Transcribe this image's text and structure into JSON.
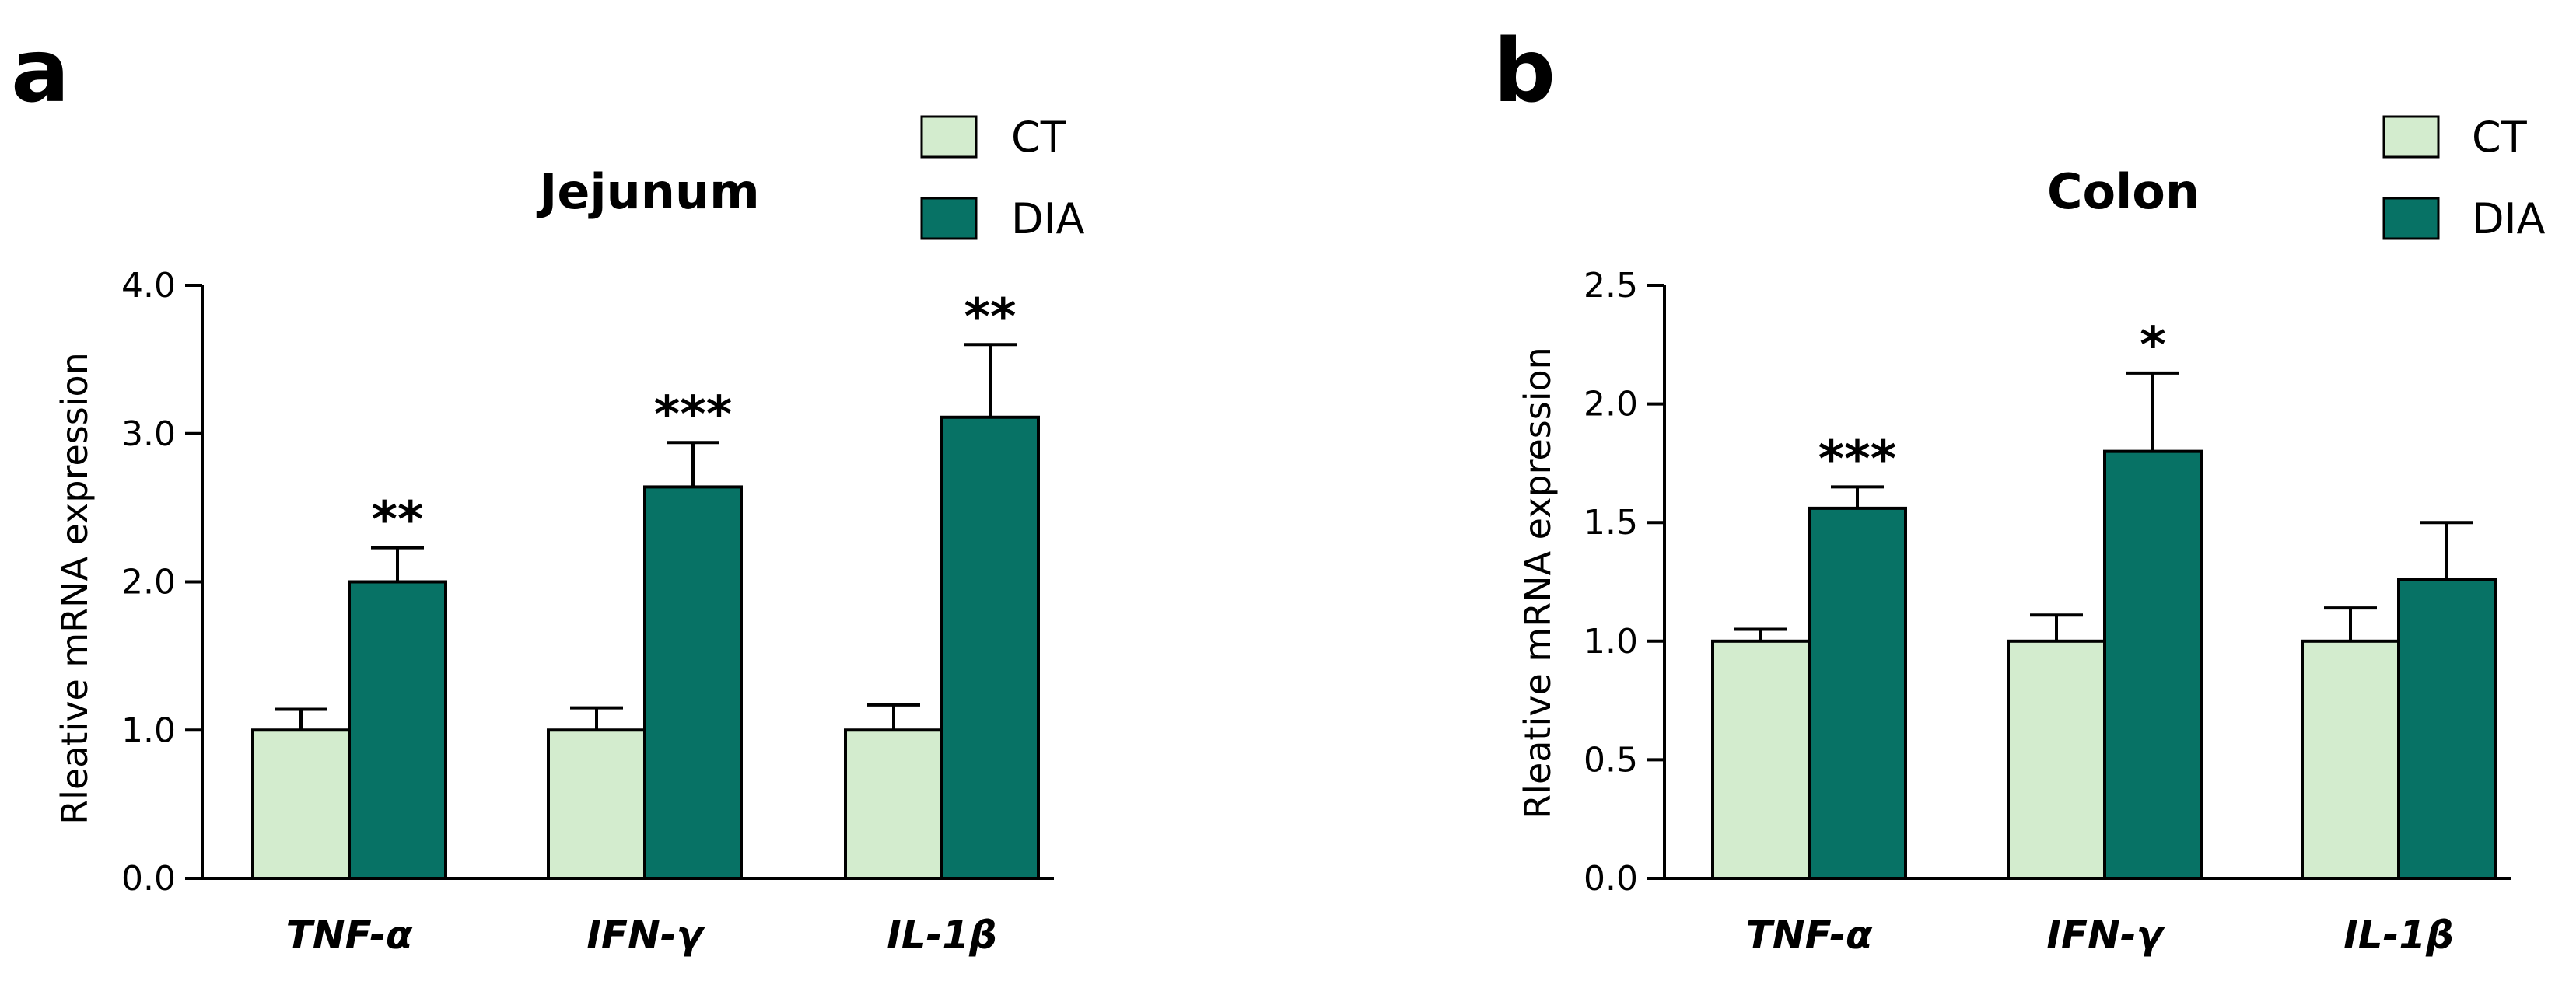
{
  "colors": {
    "CT": "#d3ecce",
    "DIA": "#077265",
    "stroke": "#000000"
  },
  "chart_data": [
    {
      "type": "bar",
      "panel": "a",
      "title": "Jejunum",
      "ylabel": "Rleative mRNA expression",
      "xlabel": "",
      "ylim": [
        0,
        4.0
      ],
      "yticks": [
        "0.0",
        "1.0",
        "2.0",
        "3.0",
        "4.0"
      ],
      "categories": [
        "TNF-α",
        "IFN-γ",
        "IL-1β"
      ],
      "legend": [
        "CT",
        "DIA"
      ],
      "legend_position": "top-right",
      "series": [
        {
          "name": "CT",
          "values": [
            1.0,
            1.0,
            1.0
          ],
          "errors": [
            0.14,
            0.15,
            0.17
          ]
        },
        {
          "name": "DIA",
          "values": [
            2.0,
            2.64,
            3.11
          ],
          "errors": [
            0.23,
            0.3,
            0.49
          ]
        }
      ],
      "significance": [
        "**",
        "***",
        "**"
      ]
    },
    {
      "type": "bar",
      "panel": "b",
      "title": "Colon",
      "ylabel": "Rleative mRNA expression",
      "xlabel": "",
      "ylim": [
        0,
        2.5
      ],
      "yticks": [
        "0.0",
        "0.5",
        "1.0",
        "1.5",
        "2.0",
        "2.5"
      ],
      "categories": [
        "TNF-α",
        "IFN-γ",
        "IL-1β"
      ],
      "legend": [
        "CT",
        "DIA"
      ],
      "legend_position": "top-right",
      "series": [
        {
          "name": "CT",
          "values": [
            1.0,
            1.0,
            1.0
          ],
          "errors": [
            0.05,
            0.11,
            0.14
          ]
        },
        {
          "name": "DIA",
          "values": [
            1.56,
            1.8,
            1.26
          ],
          "errors": [
            0.09,
            0.33,
            0.24
          ]
        }
      ],
      "significance": [
        "***",
        "*",
        ""
      ]
    }
  ]
}
